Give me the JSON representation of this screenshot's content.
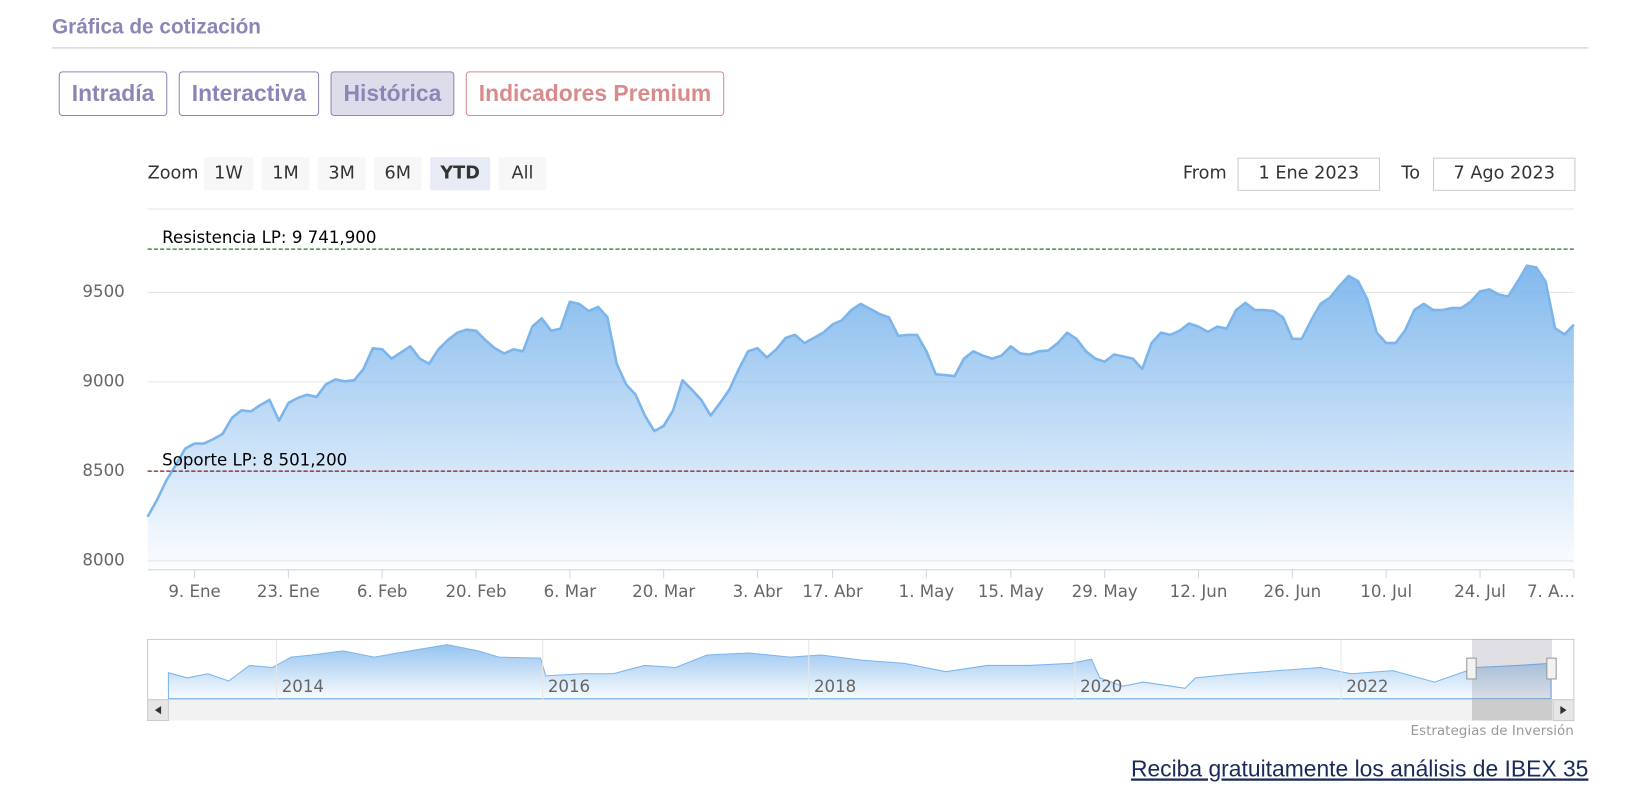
{
  "header": {
    "title": "Gráfica de cotización"
  },
  "tabs": [
    "Intradía",
    "Interactiva",
    "Histórica",
    "Indicadores Premium"
  ],
  "range_selector": {
    "label": "Zoom",
    "buttons": [
      "1W",
      "1M",
      "3M",
      "6M",
      "YTD",
      "All"
    ],
    "selected": "YTD",
    "from_label": "From",
    "from": "1 Ene 2023",
    "to_label": "To",
    "to": "7 Ago 2023"
  },
  "navigator": {
    "labels": [
      "2014",
      "2016",
      "2018",
      "2020",
      "2022"
    ]
  },
  "credits": "Estrategias de Inversión",
  "link": "Reciba gratuitamente los análisis de IBEX 35",
  "chart_data": {
    "type": "area",
    "color": "#7cb5ec",
    "values": [
      8246,
      8340,
      8450,
      8535,
      8627,
      8656,
      8656,
      8680,
      8710,
      8800,
      8841,
      8835,
      8870,
      8899,
      8783,
      8882,
      8910,
      8928,
      8916,
      8986,
      9014,
      9003,
      9009,
      9072,
      9188,
      9182,
      9130,
      9165,
      9199,
      9130,
      9101,
      9182,
      9234,
      9275,
      9292,
      9286,
      9234,
      9188,
      9159,
      9182,
      9171,
      9309,
      9355,
      9286,
      9298,
      9448,
      9436,
      9396,
      9419,
      9361,
      9101,
      8986,
      8928,
      8812,
      8725,
      8754,
      8841,
      9009,
      8957,
      8899,
      8812,
      8882,
      8957,
      9072,
      9171,
      9188,
      9136,
      9182,
      9246,
      9263,
      9217,
      9246,
      9275,
      9321,
      9344,
      9402,
      9436,
      9408,
      9379,
      9361,
      9257,
      9263,
      9263,
      9171,
      9043,
      9038,
      9032,
      9130,
      9171,
      9147,
      9130,
      9147,
      9199,
      9159,
      9153,
      9171,
      9176,
      9217,
      9275,
      9240,
      9171,
      9130,
      9113,
      9153,
      9142,
      9130,
      9072,
      9217,
      9275,
      9263,
      9286,
      9327,
      9309,
      9280,
      9309,
      9298,
      9402,
      9442,
      9402,
      9402,
      9396,
      9361,
      9240,
      9240,
      9344,
      9436,
      9471,
      9535,
      9592,
      9563,
      9460,
      9275,
      9217,
      9217,
      9286,
      9402,
      9436,
      9402,
      9402,
      9413,
      9413,
      9448,
      9506,
      9517,
      9488,
      9477,
      9560,
      9650,
      9640,
      9560,
      9300,
      9265,
      9320
    ],
    "xlim": [
      0,
      152
    ],
    "xticks": [
      {
        "value": 5,
        "label": "9. Ene"
      },
      {
        "value": 15,
        "label": "23. Ene"
      },
      {
        "value": 25,
        "label": "6. Feb"
      },
      {
        "value": 35,
        "label": "20. Feb"
      },
      {
        "value": 45,
        "label": "6. Mar"
      },
      {
        "value": 55,
        "label": "20. Mar"
      },
      {
        "value": 65,
        "label": "3. Abr"
      },
      {
        "value": 73,
        "label": "17. Abr"
      },
      {
        "value": 83,
        "label": "1. May"
      },
      {
        "value": 92,
        "label": "15. May"
      },
      {
        "value": 102,
        "label": "29. May"
      },
      {
        "value": 112,
        "label": "12. Jun"
      },
      {
        "value": 122,
        "label": "26. Jun"
      },
      {
        "value": 132,
        "label": "10. Jul"
      },
      {
        "value": 142,
        "label": "24. Jul"
      },
      {
        "value": 152,
        "label": "7. A..."
      }
    ],
    "ylim": [
      7950,
      9960
    ],
    "yticks": [
      8000,
      8500,
      9000,
      9500
    ],
    "grid": true,
    "plot_lines": [
      {
        "value": 9741.9,
        "label": "Resistencia LP: 9 741,900",
        "color": "#1a7a2e"
      },
      {
        "value": 8501.2,
        "label": "Soporte LP: 8 501,200",
        "color": "#8b1a1a"
      }
    ]
  }
}
